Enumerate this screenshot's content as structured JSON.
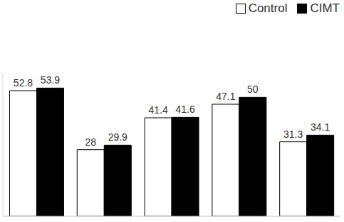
{
  "chart_data": {
    "type": "bar",
    "categories": [
      null,
      null,
      null,
      null,
      null
    ],
    "series": [
      {
        "name": "Control",
        "color": "#ffffff",
        "values": [
          52.8,
          28,
          41.4,
          47.1,
          31.3
        ]
      },
      {
        "name": "CIMT",
        "color": "#000000",
        "values": [
          53.9,
          29.9,
          41.6,
          50,
          34.1
        ]
      }
    ],
    "ylim": [
      0,
      60
    ],
    "yticks": [],
    "data_labels": true,
    "tick_labels": false,
    "legend": "top-right",
    "grid": false
  }
}
